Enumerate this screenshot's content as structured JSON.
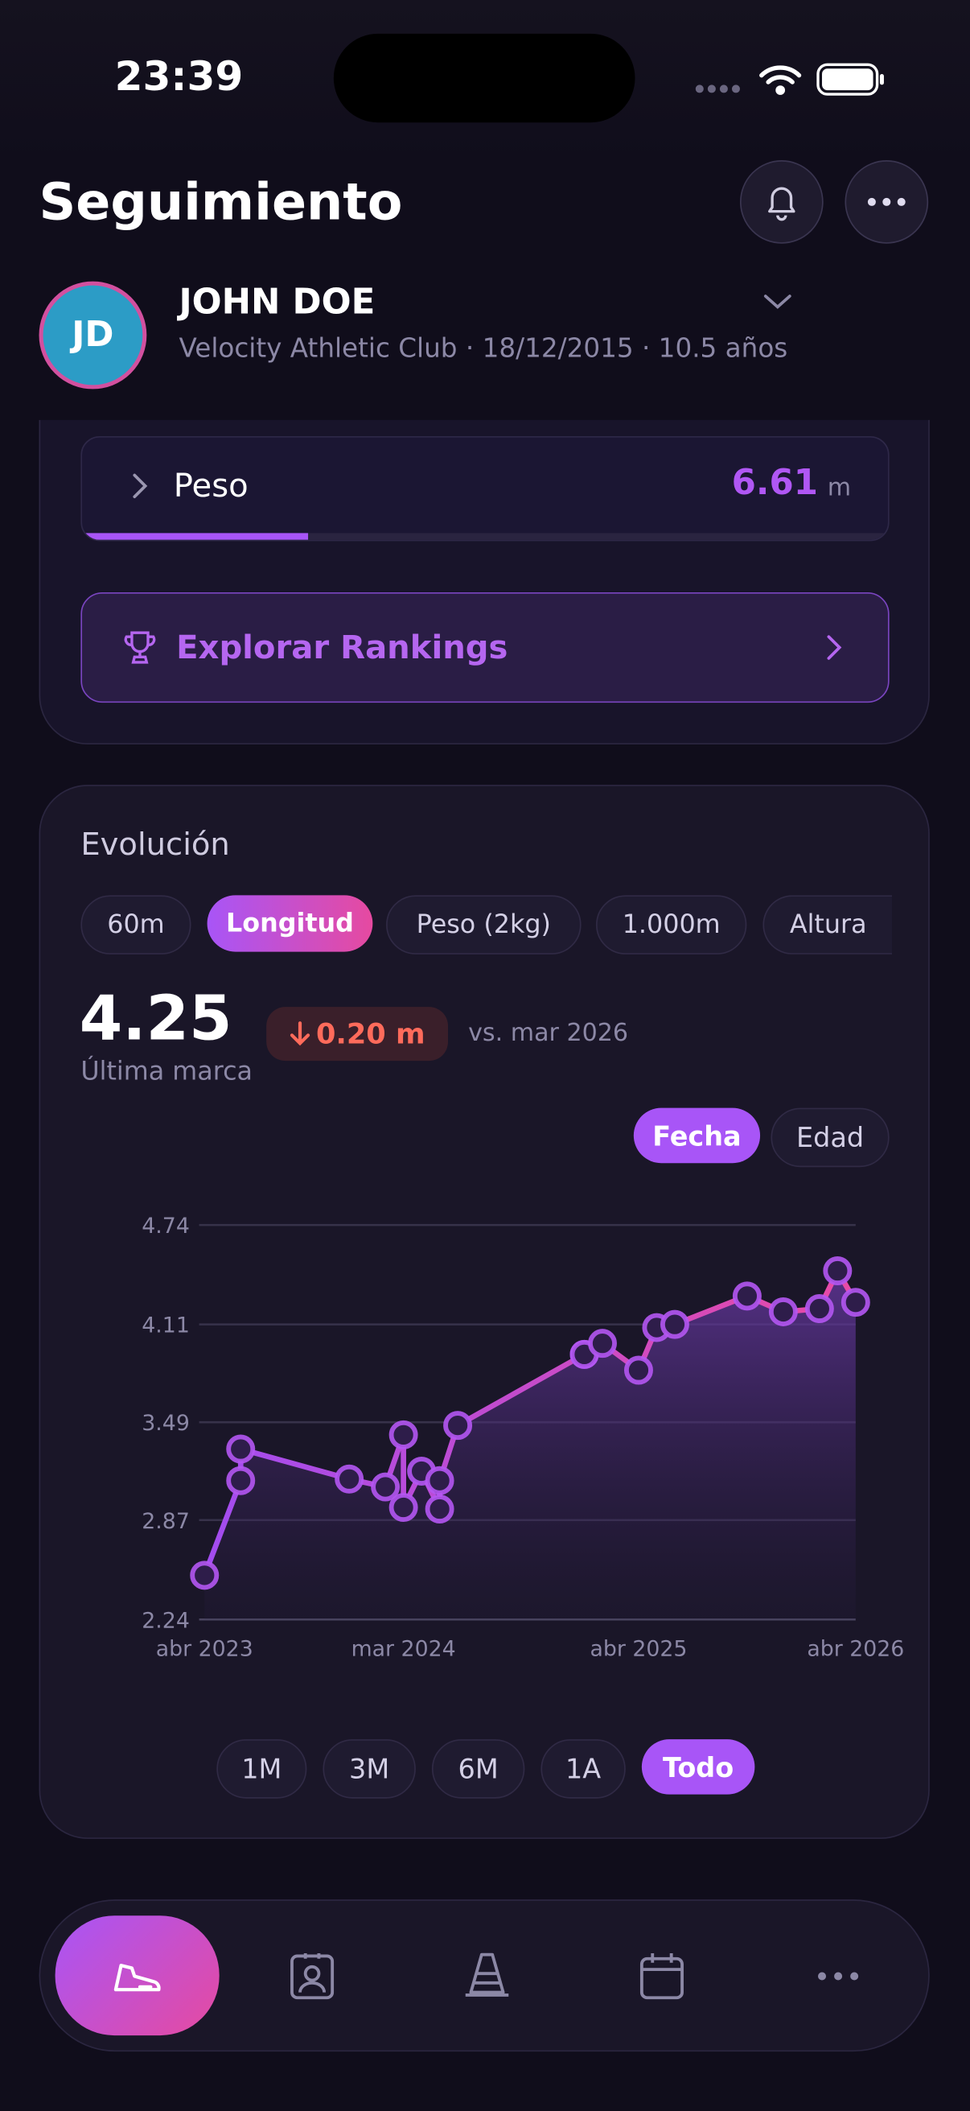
{
  "status_bar": {
    "time": "23:39"
  },
  "header": {
    "title": "Seguimiento"
  },
  "profile": {
    "initials": "JD",
    "name": "JOHN DOE",
    "subtitle": "Velocity Athletic Club · 18/12/2015 · 10.5 años"
  },
  "record_row": {
    "label": "Peso",
    "value": "6.61",
    "unit": "m"
  },
  "rankings_button": "Explorar Rankings",
  "evolution": {
    "title": "Evolución",
    "tabs": [
      "60m",
      "Longitud",
      "Peso (2kg)",
      "1.000m",
      "Altura"
    ],
    "latest": "4.25",
    "delta": "0.20 m",
    "delta_reference": "vs. mar 2026",
    "latest_caption": "Última marca",
    "axis_modes": [
      "Fecha",
      "Edad"
    ],
    "ranges": [
      "1M",
      "3M",
      "6M",
      "1A",
      "Todo"
    ]
  },
  "chart_data": {
    "type": "line",
    "x": [
      "2023-04",
      "2023-06",
      "2023-06",
      "2023-12",
      "2024-02",
      "2024-03",
      "2024-03",
      "2024-04",
      "2024-05",
      "2024-05",
      "2024-06",
      "2025-01",
      "2025-01",
      "2025-02",
      "2025-04",
      "2025-05",
      "2025-06",
      "2025-10",
      "2025-12",
      "2026-02",
      "2026-03",
      "2026-04"
    ],
    "values": [
      2.52,
      3.12,
      3.32,
      3.13,
      3.08,
      3.41,
      2.95,
      3.18,
      2.94,
      3.12,
      3.47,
      3.92,
      3.92,
      3.99,
      3.82,
      4.09,
      4.11,
      4.29,
      4.19,
      4.21,
      4.45,
      4.25
    ],
    "color": "#b457f2",
    "xlim": [
      "2023-04",
      "2026-04"
    ],
    "xticks": [
      {
        "value": "2023-04",
        "label": "abr 2023"
      },
      {
        "value": "2024-03",
        "label": "mar 2024"
      },
      {
        "value": "2025-04",
        "label": "abr 2025"
      },
      {
        "value": "2026-04",
        "label": "abr 2026"
      }
    ],
    "ylim": [
      2.24,
      4.74
    ],
    "yticks": [
      2.24,
      2.87,
      3.49,
      4.11,
      4.74
    ],
    "grid": true,
    "area": true
  }
}
